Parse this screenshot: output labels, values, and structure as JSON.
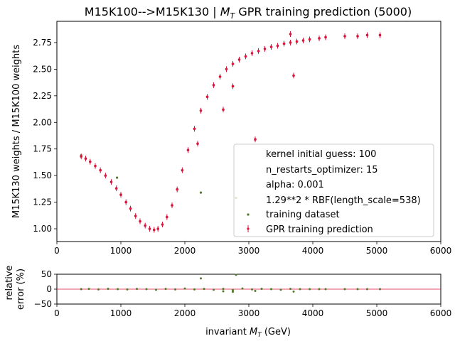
{
  "chart_data": [
    {
      "type": "scatter",
      "title_prefix": "M15K100-->M15K130 | ",
      "title_mt_main": "M",
      "title_mt_sub": "T",
      "title_suffix": " GPR training prediction (5000)",
      "xlabel": "",
      "ylabel": "M15K130 weights / M15K100 weights",
      "xlim": [
        0,
        6000
      ],
      "ylim": [
        0.88,
        2.95
      ],
      "xticks": [
        "0",
        "1000",
        "2000",
        "3000",
        "4000",
        "5000",
        "6000"
      ],
      "yticks": [
        "1.00",
        "1.25",
        "1.50",
        "1.75",
        "2.00",
        "2.25",
        "2.50",
        "2.75"
      ],
      "legend_position": "lower-right",
      "legend": {
        "kernel": "kernel initial guess: 100",
        "restarts": "n_restarts_optimizer: 15",
        "alpha": "alpha: 0.001",
        "fitted": "1.29**2 * RBF(length_scale=538)",
        "training": "training dataset",
        "prediction": "GPR training prediction"
      },
      "colors": {
        "training": "#4f7a28",
        "prediction": "#dc143c"
      },
      "series": [
        {
          "name": "training dataset",
          "points": [
            [
              380,
              1.69
            ],
            [
              450,
              1.66
            ],
            [
              520,
              1.63
            ],
            [
              600,
              1.59
            ],
            [
              680,
              1.55
            ],
            [
              760,
              1.5
            ],
            [
              850,
              1.44
            ],
            [
              930,
              1.38
            ],
            [
              1000,
              1.32
            ],
            [
              1080,
              1.25
            ],
            [
              1150,
              1.19
            ],
            [
              1230,
              1.12
            ],
            [
              1300,
              1.07
            ],
            [
              1380,
              1.03
            ],
            [
              1450,
              1.0
            ],
            [
              1520,
              0.99
            ],
            [
              1580,
              1.0
            ],
            [
              1650,
              1.04
            ],
            [
              1720,
              1.11
            ],
            [
              1800,
              1.22
            ],
            [
              1880,
              1.37
            ],
            [
              1960,
              1.55
            ],
            [
              2050,
              1.74
            ],
            [
              2150,
              1.94
            ],
            [
              2250,
              2.11
            ],
            [
              2350,
              2.24
            ],
            [
              2450,
              2.35
            ],
            [
              2550,
              2.43
            ],
            [
              2650,
              2.5
            ],
            [
              2750,
              2.55
            ],
            [
              2850,
              2.59
            ],
            [
              2950,
              2.62
            ],
            [
              3050,
              2.65
            ],
            [
              3150,
              2.67
            ],
            [
              3250,
              2.69
            ],
            [
              3350,
              2.71
            ],
            [
              3450,
              2.72
            ],
            [
              3550,
              2.74
            ],
            [
              3650,
              2.75
            ],
            [
              3750,
              2.76
            ],
            [
              3850,
              2.77
            ],
            [
              3950,
              2.78
            ],
            [
              4100,
              2.79
            ],
            [
              4200,
              2.8
            ],
            [
              4500,
              2.81
            ],
            [
              4700,
              2.81
            ],
            [
              4850,
              2.82
            ],
            [
              5050,
              2.82
            ],
            [
              940,
              1.48
            ],
            [
              2250,
              1.34
            ],
            [
              2800,
              1.29
            ],
            [
              3100,
              1.84
            ],
            [
              3650,
              2.83
            ],
            [
              3700,
              2.44
            ],
            [
              2600,
              2.12
            ],
            [
              2750,
              2.34
            ]
          ]
        },
        {
          "name": "GPR training prediction",
          "points": [
            [
              380,
              1.68
            ],
            [
              450,
              1.66
            ],
            [
              520,
              1.63
            ],
            [
              600,
              1.59
            ],
            [
              680,
              1.55
            ],
            [
              760,
              1.5
            ],
            [
              850,
              1.44
            ],
            [
              930,
              1.38
            ],
            [
              1000,
              1.32
            ],
            [
              1080,
              1.25
            ],
            [
              1150,
              1.19
            ],
            [
              1230,
              1.12
            ],
            [
              1300,
              1.07
            ],
            [
              1380,
              1.03
            ],
            [
              1450,
              1.0
            ],
            [
              1520,
              0.99
            ],
            [
              1580,
              1.0
            ],
            [
              1650,
              1.04
            ],
            [
              1720,
              1.11
            ],
            [
              1800,
              1.22
            ],
            [
              1880,
              1.37
            ],
            [
              1960,
              1.55
            ],
            [
              2050,
              1.74
            ],
            [
              2150,
              1.94
            ],
            [
              2250,
              2.11
            ],
            [
              2350,
              2.24
            ],
            [
              2450,
              2.35
            ],
            [
              2550,
              2.43
            ],
            [
              2650,
              2.5
            ],
            [
              2750,
              2.55
            ],
            [
              2850,
              2.59
            ],
            [
              2950,
              2.62
            ],
            [
              3050,
              2.65
            ],
            [
              3150,
              2.67
            ],
            [
              3250,
              2.69
            ],
            [
              3350,
              2.71
            ],
            [
              3450,
              2.72
            ],
            [
              3550,
              2.74
            ],
            [
              3650,
              2.75
            ],
            [
              3750,
              2.76
            ],
            [
              3850,
              2.77
            ],
            [
              3950,
              2.78
            ],
            [
              4100,
              2.79
            ],
            [
              4200,
              2.8
            ],
            [
              4500,
              2.81
            ],
            [
              4700,
              2.81
            ],
            [
              4850,
              2.82
            ],
            [
              5050,
              2.82
            ],
            [
              3100,
              1.84
            ],
            [
              3650,
              2.83
            ],
            [
              3700,
              2.44
            ],
            [
              2600,
              2.12
            ],
            [
              2750,
              2.34
            ],
            [
              2200,
              1.8
            ]
          ]
        }
      ]
    },
    {
      "type": "scatter",
      "xlabel_main": "invariant ",
      "xlabel_mt_main": "M",
      "xlabel_mt_sub": "T",
      "xlabel_suffix": " (GeV)",
      "ylabel_line1": "relative",
      "ylabel_line2": "error (%)",
      "xlim": [
        0,
        6000
      ],
      "ylim": [
        -50,
        50
      ],
      "xticks": [
        "0",
        "1000",
        "2000",
        "3000",
        "4000",
        "5000",
        "6000"
      ],
      "yticks": [
        "50",
        "0",
        "−50"
      ],
      "reference_line_y": 0,
      "colors": {
        "points": "#4f7a28",
        "reference": "#dc143c"
      },
      "points": [
        [
          380,
          0
        ],
        [
          500,
          1
        ],
        [
          650,
          -1
        ],
        [
          800,
          1
        ],
        [
          950,
          0
        ],
        [
          1100,
          -1
        ],
        [
          1250,
          1
        ],
        [
          1400,
          0
        ],
        [
          1550,
          -2
        ],
        [
          1700,
          1
        ],
        [
          1850,
          -1
        ],
        [
          2000,
          2
        ],
        [
          2150,
          -1
        ],
        [
          2300,
          1
        ],
        [
          2450,
          -2
        ],
        [
          2600,
          1
        ],
        [
          2750,
          -3
        ],
        [
          2900,
          2
        ],
        [
          3050,
          -1
        ],
        [
          3200,
          1
        ],
        [
          3350,
          0
        ],
        [
          3500,
          -2
        ],
        [
          3650,
          1
        ],
        [
          3800,
          0
        ],
        [
          3950,
          0
        ],
        [
          4100,
          0
        ],
        [
          4200,
          0
        ],
        [
          4500,
          0
        ],
        [
          4700,
          0
        ],
        [
          4850,
          0
        ],
        [
          5050,
          0
        ],
        [
          2250,
          36
        ],
        [
          2800,
          48
        ],
        [
          2750,
          -9
        ],
        [
          2600,
          -7
        ],
        [
          3700,
          -8
        ],
        [
          3100,
          -6
        ]
      ]
    }
  ]
}
